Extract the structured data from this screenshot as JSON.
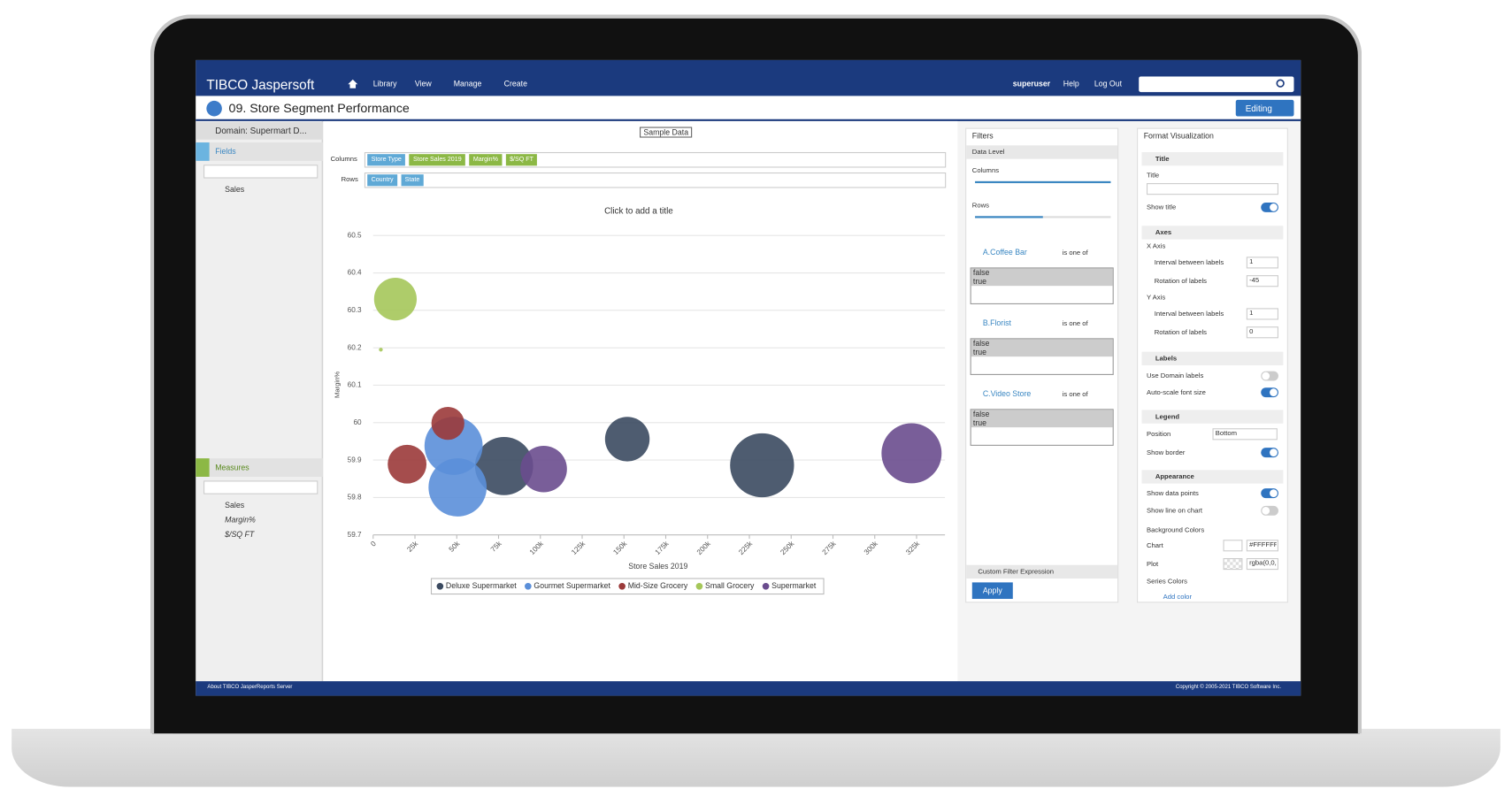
{
  "header": {
    "brand": "TIBCO Jaspersoft",
    "nav": [
      "Library",
      "View",
      "Manage",
      "Create"
    ],
    "user": "superuser",
    "links": [
      "Help",
      "Log Out"
    ]
  },
  "title_bar": {
    "title": "09. Store Segment Performance",
    "button": "Editing"
  },
  "data_panel": {
    "domain": "Domain: Supermart D...",
    "fields": {
      "label": "Fields",
      "items": [
        "Sales"
      ]
    },
    "measures": {
      "label": "Measures",
      "items": [
        "Sales",
        "Margin%",
        "$/SQ FT"
      ]
    }
  },
  "toolbar": {
    "data_selector": "Sample Data"
  },
  "columns": {
    "label": "Columns",
    "pills": [
      {
        "text": "Store Type",
        "color": "#5fa9d6"
      },
      {
        "text": "Store Sales 2019",
        "color": "#8cb845"
      },
      {
        "text": "Margin%",
        "color": "#8cb845"
      },
      {
        "text": "$/SQ FT",
        "color": "#8cb845"
      }
    ]
  },
  "rows": {
    "label": "Rows",
    "pills": [
      {
        "text": "Country",
        "color": "#5fa9d6"
      },
      {
        "text": "State",
        "color": "#5fa9d6"
      }
    ]
  },
  "chart_data": {
    "type": "bubble",
    "title": "Click to add a title",
    "x_label": "Store Sales 2019",
    "y_label": "Margin%",
    "xlim": [
      0,
      342000
    ],
    "xticks": [
      0,
      {
        "value": 25000,
        "label": "25k"
      },
      {
        "value": 50000,
        "label": "50k"
      },
      {
        "value": 75000,
        "label": "75k"
      },
      {
        "value": 100000,
        "label": "100k"
      },
      {
        "value": 125000,
        "label": "125k"
      },
      {
        "value": 150000,
        "label": "150k"
      },
      {
        "value": 175000,
        "label": "175k"
      },
      {
        "value": 200000,
        "label": "200k"
      },
      {
        "value": 225000,
        "label": "225k"
      },
      {
        "value": 250000,
        "label": "250k"
      },
      {
        "value": 275000,
        "label": "275k"
      },
      {
        "value": 300000,
        "label": "300k"
      },
      {
        "value": 325000,
        "label": "325k"
      }
    ],
    "ylim": [
      59.7,
      60.5
    ],
    "yticks": [
      59.7,
      59.8,
      59.9,
      60,
      60.1,
      60.2,
      60.3,
      60.4,
      60.5
    ],
    "grid": true,
    "legend": "bottom",
    "legend_border": true,
    "series": [
      {
        "name": "Deluxe Supermarket",
        "color": "#3b4a60",
        "x": [
          78300,
          152000,
          232600
        ],
        "values": [
          59.884,
          59.956,
          59.886
        ],
        "sizes": [
          900,
          529,
          1089
        ]
      },
      {
        "name": "Gourmet Supermarket",
        "color": "#5b8fd9",
        "x": [
          48100,
          50500
        ],
        "values": [
          59.938,
          59.827
        ],
        "sizes": [
          900,
          900
        ]
      },
      {
        "name": "Mid-Size Grocery",
        "color": "#9b3a3a",
        "x": [
          20300,
          44700
        ],
        "values": [
          59.889,
          59.998
        ],
        "sizes": [
          400,
          289
        ]
      },
      {
        "name": "Small Grocery",
        "color": "#a5c75a",
        "x": [
          13300,
          4600
        ],
        "values": [
          60.33,
          60.195
        ],
        "sizes": [
          484,
          4
        ]
      },
      {
        "name": "Supermarket",
        "color": "#6a4c8e",
        "x": [
          102000,
          322000
        ],
        "values": [
          59.876,
          59.918
        ],
        "sizes": [
          576,
          961
        ]
      }
    ]
  },
  "filters": {
    "title": "Filters",
    "data_level": "Data Level",
    "sliders": [
      "Columns",
      "Rows"
    ],
    "items": [
      {
        "name": "A.Coffee Bar",
        "operator": "is one of",
        "options": [
          "false",
          "true"
        ]
      },
      {
        "name": "B.Florist",
        "operator": "is one of",
        "options": [
          "false",
          "true"
        ]
      },
      {
        "name": "C.Video Store",
        "operator": "is one of",
        "options": [
          "false",
          "true"
        ]
      }
    ],
    "custom": "Custom Filter Expression",
    "apply": "Apply"
  },
  "format": {
    "title": "Format Visualization",
    "sections": [
      {
        "heading": "Title",
        "rows": [
          {
            "label": "Title",
            "kind": "input"
          },
          {
            "label": "Show title",
            "kind": "toggle",
            "on": true
          }
        ]
      },
      {
        "heading": "Axes",
        "rows": [
          {
            "label": "X Axis",
            "kind": "sub"
          },
          {
            "label": "Interval between labels",
            "kind": "field",
            "value": 1
          },
          {
            "label": "Rotation of labels",
            "kind": "field",
            "value": -45
          },
          {
            "label": "Y Axis",
            "kind": "sub"
          },
          {
            "label": "Interval between labels",
            "kind": "field",
            "value": 1
          },
          {
            "label": "Rotation of labels",
            "kind": "field",
            "value": 0
          }
        ]
      },
      {
        "heading": "Labels",
        "rows": [
          {
            "label": "Use Domain labels",
            "kind": "toggle",
            "on": false
          },
          {
            "label": "Auto-scale font size",
            "kind": "toggle",
            "on": true
          }
        ]
      },
      {
        "heading": "Legend",
        "rows": [
          {
            "label": "Position",
            "kind": "select",
            "value": "Bottom"
          },
          {
            "label": "Show border",
            "kind": "toggle",
            "on": true
          }
        ]
      },
      {
        "heading": "Appearance",
        "rows": [
          {
            "label": "Show data points",
            "kind": "toggle",
            "on": true
          },
          {
            "label": "Show line on chart",
            "kind": "toggle",
            "on": false
          },
          {
            "label": "Background Colors",
            "kind": "sub"
          },
          {
            "label": "Chart",
            "kind": "color",
            "value": "#FFFFFF"
          },
          {
            "label": "Plot",
            "kind": "color",
            "value": "rgba(0,0,0,0)"
          },
          {
            "label": "Series Colors",
            "kind": "sub"
          },
          {
            "label": "Add color",
            "kind": "link"
          }
        ]
      }
    ]
  },
  "footer": {
    "left": "About TIBCO JasperReports Server",
    "right": "Copyright © 2005-2021 TIBCO Software Inc."
  }
}
